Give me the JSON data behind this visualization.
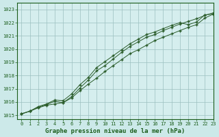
{
  "title": "Graphe pression niveau de la mer (hPa)",
  "background_color": "#cce9e9",
  "plot_bg_color": "#d5eeee",
  "grid_color": "#9bbfbf",
  "line_color": "#2a5c2a",
  "marker_color": "#2a5c2a",
  "xlim": [
    -0.5,
    23
  ],
  "ylim": [
    1014.7,
    1023.5
  ],
  "xticks": [
    0,
    1,
    2,
    3,
    4,
    5,
    6,
    7,
    8,
    9,
    10,
    11,
    12,
    13,
    14,
    15,
    16,
    17,
    18,
    19,
    20,
    21,
    22,
    23
  ],
  "yticks": [
    1015,
    1016,
    1017,
    1018,
    1019,
    1020,
    1021,
    1022,
    1023
  ],
  "series1": [
    1015.1,
    1015.3,
    1015.55,
    1015.75,
    1015.85,
    1015.95,
    1016.3,
    1016.85,
    1017.35,
    1017.8,
    1018.3,
    1018.75,
    1019.2,
    1019.65,
    1019.95,
    1020.3,
    1020.65,
    1020.9,
    1021.15,
    1021.4,
    1021.65,
    1021.85,
    1022.35,
    1022.65
  ],
  "series2": [
    1015.1,
    1015.3,
    1015.6,
    1015.8,
    1016.05,
    1015.95,
    1016.4,
    1017.05,
    1017.65,
    1018.35,
    1018.75,
    1019.25,
    1019.75,
    1020.2,
    1020.55,
    1020.9,
    1021.1,
    1021.4,
    1021.65,
    1021.9,
    1022.1,
    1022.3,
    1022.55,
    1022.75
  ],
  "series3": [
    1015.1,
    1015.3,
    1015.65,
    1015.85,
    1016.15,
    1016.1,
    1016.6,
    1017.3,
    1017.85,
    1018.6,
    1019.05,
    1019.5,
    1019.95,
    1020.4,
    1020.75,
    1021.1,
    1021.3,
    1021.55,
    1021.8,
    1022.0,
    1021.85,
    1022.05,
    1022.6,
    1022.65
  ]
}
